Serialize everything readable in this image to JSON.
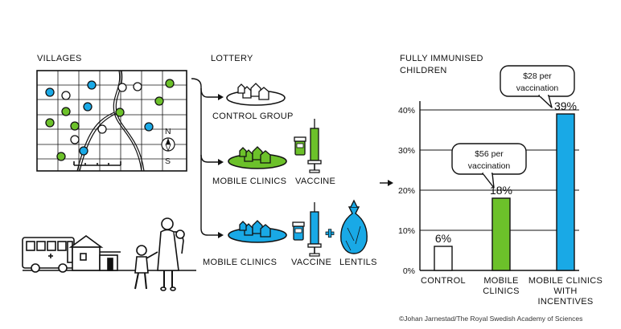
{
  "sections": {
    "villages": "VILLAGES",
    "lottery": "LOTTERY",
    "outcome_title_1": "FULLY IMMUNISED",
    "outcome_title_2": "CHILDREN"
  },
  "map": {
    "north": "N",
    "south": "S"
  },
  "groups": {
    "control": "CONTROL GROUP",
    "mobile_vaccine": "MOBILE CLINICS",
    "vaccine": "VACCINE",
    "mobile_lentils": "MOBILE CLINICS",
    "vaccine2": "VACCINE",
    "lentils": "LENTILS"
  },
  "callouts": {
    "c1_line1": "$56 per",
    "c1_line2": "vaccination",
    "c2_line1": "$28 per",
    "c2_line2": "vaccination"
  },
  "colors": {
    "green": "#6cc12a",
    "blue": "#19a9e6",
    "white": "#ffffff",
    "ink": "#111111"
  },
  "chart_data": {
    "type": "bar",
    "title": "FULLY IMMUNISED CHILDREN",
    "ylim": [
      0,
      45
    ],
    "y_ticks": [
      "0%",
      "10%",
      "20%",
      "30%",
      "40%"
    ],
    "categories": [
      [
        "CONTROL"
      ],
      [
        "MOBILE",
        "CLINICS"
      ],
      [
        "MOBILE CLINICS",
        "WITH",
        "INCENTIVES"
      ]
    ],
    "values": [
      6,
      18,
      39
    ],
    "value_labels": [
      "6%",
      "18%",
      "39%"
    ],
    "bar_colors": [
      "#ffffff",
      "#6cc12a",
      "#19a9e6"
    ]
  },
  "credit": "©Johan Jarnestad/The Royal Swedish Academy of Sciences"
}
